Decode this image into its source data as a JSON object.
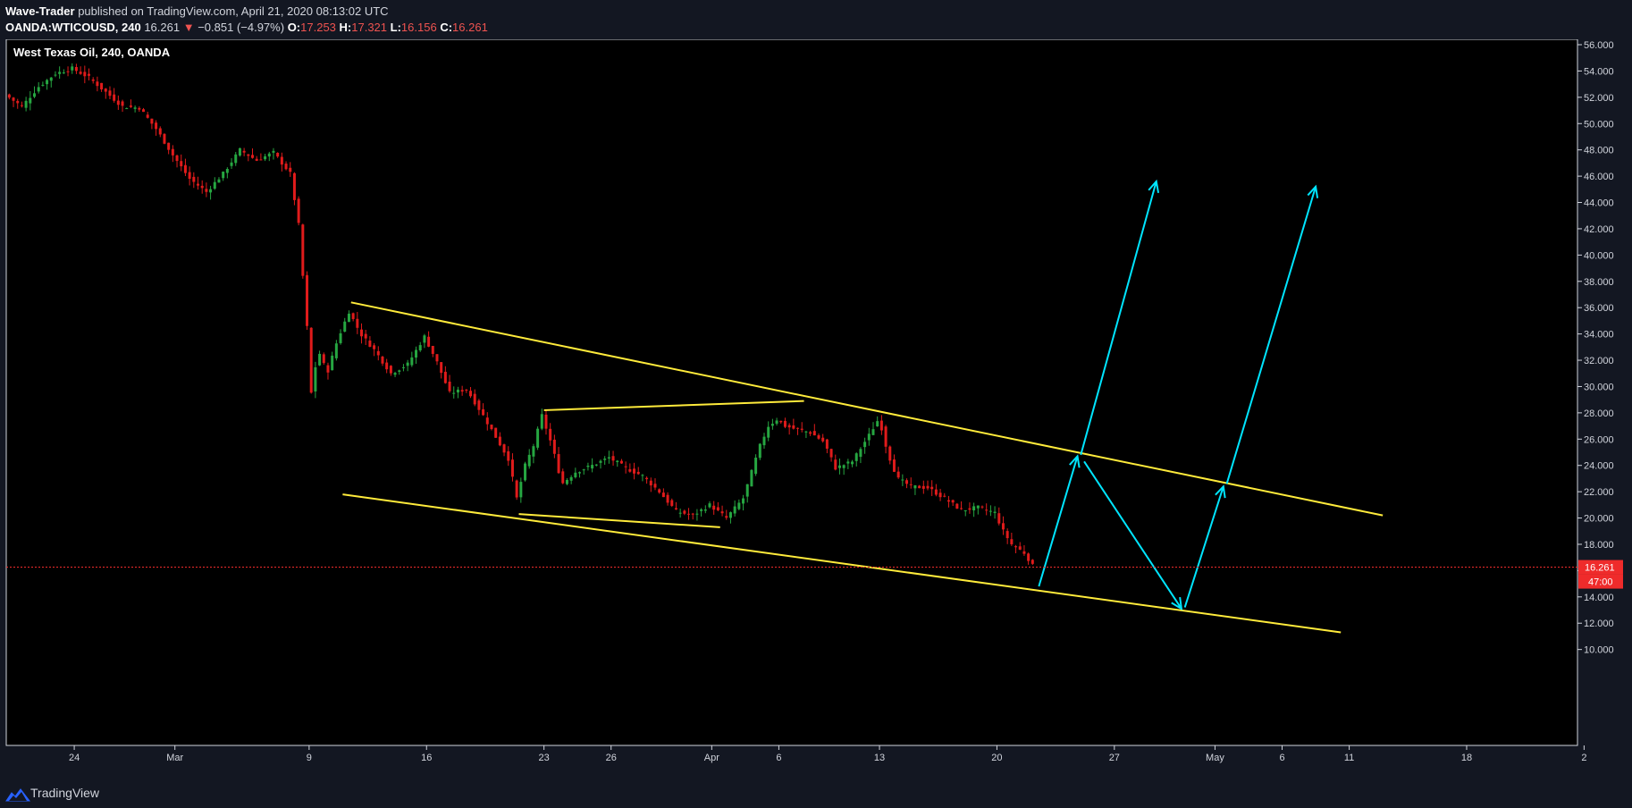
{
  "header": {
    "author": "Wave-Trader",
    "published_text": "published on TradingView.com, April 21, 2020 08:13:02 UTC",
    "symbol": "OANDA:WTICOUSD, 240",
    "last": "16.261",
    "change_arrow": "▼",
    "change": "−0.851 (−4.97%)",
    "open_label": "O:",
    "open": "17.253",
    "high_label": "H:",
    "high": "17.321",
    "low_label": "L:",
    "low": "16.156",
    "close_label": "C:",
    "close": "16.261"
  },
  "footer": {
    "brand": "TradingView"
  },
  "chart_data": {
    "type": "candlestick",
    "title": "West Texas Oil, 240, OANDA",
    "y_axis": {
      "range": [
        10,
        56
      ],
      "ticks": [
        "56.000",
        "54.000",
        "52.000",
        "50.000",
        "48.000",
        "46.000",
        "44.000",
        "42.000",
        "40.000",
        "38.000",
        "36.000",
        "34.000",
        "32.000",
        "30.000",
        "28.000",
        "26.000",
        "24.000",
        "22.000",
        "20.000",
        "18.000",
        "16.000",
        "14.000",
        "12.000",
        "10.000"
      ],
      "tick_values": [
        56,
        54,
        52,
        50,
        48,
        46,
        44,
        42,
        40,
        38,
        36,
        34,
        32,
        30,
        28,
        26,
        24,
        22,
        20,
        18,
        16,
        14,
        12,
        10
      ]
    },
    "x_axis": {
      "ticks": [
        "24",
        "Mar",
        "9",
        "16",
        "23",
        "26",
        "Apr",
        "6",
        "13",
        "20",
        "27",
        "May",
        "6",
        "11",
        "18",
        "2"
      ],
      "tick_days": [
        4,
        10,
        18,
        25,
        32,
        36,
        42,
        46,
        52,
        59,
        66,
        72,
        76,
        80,
        87,
        94
      ]
    },
    "last_price": {
      "value": 16.261,
      "label": "16.261",
      "countdown": "47:00"
    },
    "price_path": [
      [
        0,
        52.2
      ],
      [
        1,
        51.3
      ],
      [
        2,
        52.8
      ],
      [
        3,
        53.8
      ],
      [
        4,
        54.2
      ],
      [
        5,
        53.5
      ],
      [
        6,
        52.4
      ],
      [
        7,
        51.3
      ],
      [
        8,
        51.2
      ],
      [
        9,
        49.6
      ],
      [
        10,
        47.6
      ],
      [
        11,
        45.8
      ],
      [
        12,
        44.8
      ],
      [
        13,
        46.2
      ],
      [
        14,
        48.0
      ],
      [
        15,
        47.2
      ],
      [
        16,
        47.8
      ],
      [
        16.5,
        47.0
      ],
      [
        17,
        46.2
      ],
      [
        17.5,
        42.3
      ],
      [
        18.0,
        34.5
      ],
      [
        18.3,
        28.5
      ],
      [
        18.6,
        33.0
      ],
      [
        19.2,
        31.0
      ],
      [
        19.8,
        33.5
      ],
      [
        20.5,
        35.7
      ],
      [
        21.2,
        34.0
      ],
      [
        22,
        32.8
      ],
      [
        23,
        31.0
      ],
      [
        24,
        31.7
      ],
      [
        25,
        33.8
      ],
      [
        25.7,
        32.0
      ],
      [
        26.5,
        29.5
      ],
      [
        27.5,
        29.8
      ],
      [
        28.4,
        28.0
      ],
      [
        29.1,
        26.5
      ],
      [
        30,
        24.5
      ],
      [
        30.5,
        21.5
      ],
      [
        31.0,
        24.0
      ],
      [
        31.5,
        25.5
      ],
      [
        32.0,
        27.8
      ],
      [
        32.6,
        25.5
      ],
      [
        33.2,
        22.6
      ],
      [
        34,
        23.5
      ],
      [
        35,
        24.0
      ],
      [
        36,
        24.6
      ],
      [
        37,
        23.8
      ],
      [
        38,
        23.2
      ],
      [
        39,
        22.0
      ],
      [
        40,
        20.5
      ],
      [
        41,
        20.2
      ],
      [
        42,
        21.0
      ],
      [
        43,
        20.0
      ],
      [
        44,
        21.5
      ],
      [
        44.5,
        23.5
      ],
      [
        45.0,
        25.5
      ],
      [
        45.5,
        27.0
      ],
      [
        46.0,
        27.5
      ],
      [
        46.5,
        27.0
      ],
      [
        47,
        26.8
      ],
      [
        48,
        26.5
      ],
      [
        48.8,
        25.8
      ],
      [
        49.5,
        23.8
      ],
      [
        50.5,
        24.3
      ],
      [
        51.5,
        26.3
      ],
      [
        52.1,
        27.6
      ],
      [
        52.6,
        25.0
      ],
      [
        53.2,
        23.0
      ],
      [
        54,
        22.4
      ],
      [
        55,
        22.3
      ],
      [
        56,
        21.5
      ],
      [
        57,
        20.6
      ],
      [
        58,
        20.8
      ],
      [
        59,
        20.4
      ],
      [
        59.5,
        19.0
      ],
      [
        60,
        18.0
      ],
      [
        60.8,
        17.3
      ],
      [
        61.3,
        16.261
      ]
    ],
    "drawings": {
      "channel_upper": [
        [
          20.5,
          36.4
        ],
        [
          82,
          20.2
        ]
      ],
      "channel_lower": [
        [
          20.0,
          21.8
        ],
        [
          79.5,
          11.3
        ]
      ],
      "triangle_upper": [
        [
          32.0,
          28.2
        ],
        [
          47.5,
          28.9
        ]
      ],
      "triangle_lower": [
        [
          30.5,
          20.3
        ],
        [
          42.5,
          19.3
        ]
      ],
      "arrow_up_1": [
        [
          61.5,
          14.8
        ],
        [
          63.8,
          24.7
        ]
      ],
      "arrow_down": [
        [
          64.2,
          24.3
        ],
        [
          70,
          13.1
        ]
      ],
      "arrow_up_2": [
        [
          70.2,
          13.2
        ],
        [
          72.5,
          22.4
        ]
      ],
      "target_arrow_1": [
        [
          64,
          24.8
        ],
        [
          68.5,
          45.6
        ]
      ],
      "target_arrow_2": [
        [
          72.7,
          22.6
        ],
        [
          78,
          45.2
        ]
      ]
    },
    "colors": {
      "background": "#000000",
      "page": "#131722",
      "up_candle": "#26a641",
      "down_candle": "#e01b1b",
      "trendline": "#ffeb3b",
      "arrow": "#00e5ff",
      "price_line": "#ef2b2b",
      "text": "#d1d4dc"
    }
  }
}
